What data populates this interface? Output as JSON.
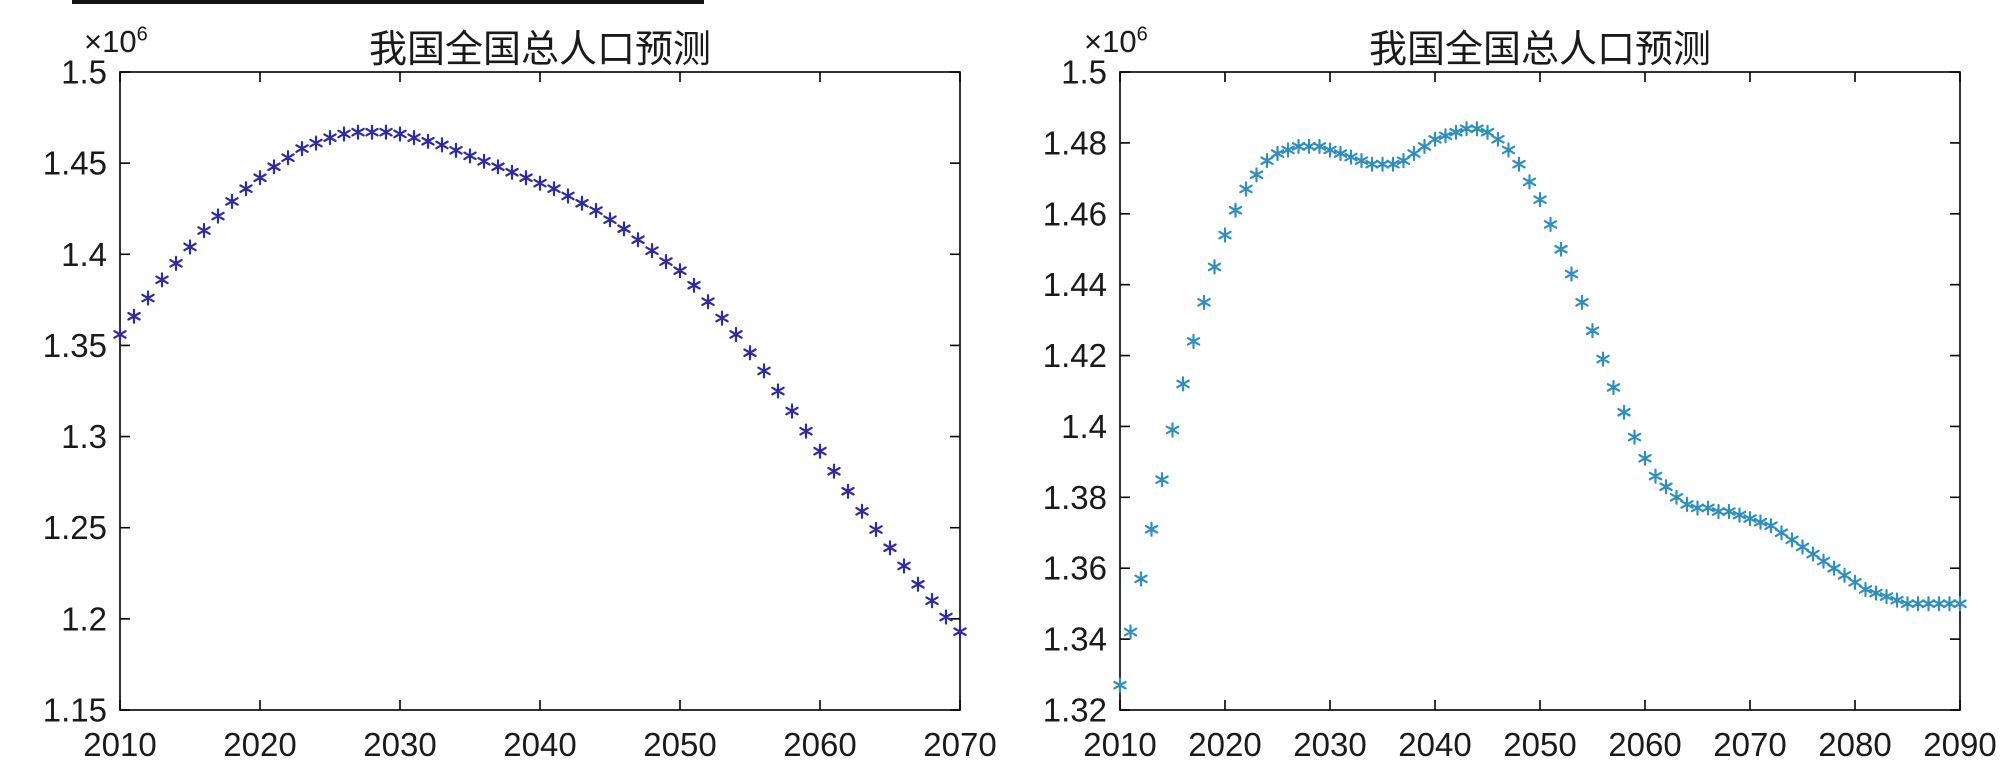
{
  "figure": {
    "background": "#ffffff",
    "axes_color": "#000000",
    "text_color": "#1a1a1a"
  },
  "chart_data": [
    {
      "type": "scatter",
      "title": "我国全国总人口预测",
      "xlabel": "",
      "ylabel": "",
      "y_exponent_base": "×10",
      "y_exponent_power": "6",
      "unit_scale": "1e6",
      "marker": "asterisk",
      "marker_color": "#2b2ba6",
      "grid": false,
      "legend": null,
      "xlim": [
        2010,
        2070
      ],
      "ylim": [
        1.15,
        1.5
      ],
      "xticks": [
        2010,
        2020,
        2030,
        2040,
        2050,
        2060,
        2070
      ],
      "yticks": [
        1.15,
        1.2,
        1.25,
        1.3,
        1.35,
        1.4,
        1.45,
        1.5
      ],
      "ytick_labels": [
        "1.15",
        "1.2",
        "1.25",
        "1.3",
        "1.35",
        "1.4",
        "1.45",
        "1.5"
      ],
      "x_start": 2010,
      "x_step": 1,
      "values": [
        1.356,
        1.366,
        1.376,
        1.386,
        1.395,
        1.404,
        1.413,
        1.421,
        1.429,
        1.436,
        1.442,
        1.448,
        1.453,
        1.458,
        1.461,
        1.464,
        1.466,
        1.467,
        1.467,
        1.467,
        1.466,
        1.464,
        1.462,
        1.46,
        1.457,
        1.454,
        1.451,
        1.448,
        1.445,
        1.442,
        1.439,
        1.436,
        1.432,
        1.428,
        1.424,
        1.419,
        1.414,
        1.408,
        1.402,
        1.396,
        1.391,
        1.383,
        1.374,
        1.365,
        1.356,
        1.346,
        1.336,
        1.325,
        1.314,
        1.303,
        1.292,
        1.281,
        1.27,
        1.259,
        1.249,
        1.239,
        1.229,
        1.219,
        1.21,
        1.201,
        1.193
      ]
    },
    {
      "type": "scatter",
      "title": "我国全国总人口预测",
      "xlabel": "",
      "ylabel": "",
      "y_exponent_base": "×10",
      "y_exponent_power": "6",
      "unit_scale": "1e6",
      "marker": "asterisk",
      "marker_color": "#2e8fbf",
      "grid": false,
      "legend": null,
      "xlim": [
        2010,
        2090
      ],
      "ylim": [
        1.32,
        1.5
      ],
      "xticks": [
        2010,
        2020,
        2030,
        2040,
        2050,
        2060,
        2070,
        2080,
        2090
      ],
      "yticks": [
        1.32,
        1.34,
        1.36,
        1.38,
        1.4,
        1.42,
        1.44,
        1.46,
        1.48,
        1.5
      ],
      "ytick_labels": [
        "1.32",
        "1.34",
        "1.36",
        "1.38",
        "1.4",
        "1.42",
        "1.44",
        "1.46",
        "1.48",
        "1.5"
      ],
      "x_start": 2010,
      "x_step": 1,
      "values": [
        1.327,
        1.342,
        1.357,
        1.371,
        1.385,
        1.399,
        1.412,
        1.424,
        1.435,
        1.445,
        1.454,
        1.461,
        1.467,
        1.471,
        1.475,
        1.477,
        1.478,
        1.479,
        1.479,
        1.479,
        1.478,
        1.477,
        1.476,
        1.475,
        1.474,
        1.474,
        1.474,
        1.475,
        1.477,
        1.479,
        1.481,
        1.482,
        1.483,
        1.484,
        1.484,
        1.483,
        1.481,
        1.478,
        1.474,
        1.469,
        1.464,
        1.457,
        1.45,
        1.443,
        1.435,
        1.427,
        1.419,
        1.411,
        1.404,
        1.397,
        1.391,
        1.386,
        1.383,
        1.38,
        1.378,
        1.377,
        1.377,
        1.376,
        1.376,
        1.375,
        1.374,
        1.373,
        1.372,
        1.37,
        1.368,
        1.366,
        1.364,
        1.362,
        1.36,
        1.358,
        1.356,
        1.354,
        1.353,
        1.352,
        1.351,
        1.35,
        1.35,
        1.35,
        1.35,
        1.35,
        1.35
      ]
    }
  ]
}
